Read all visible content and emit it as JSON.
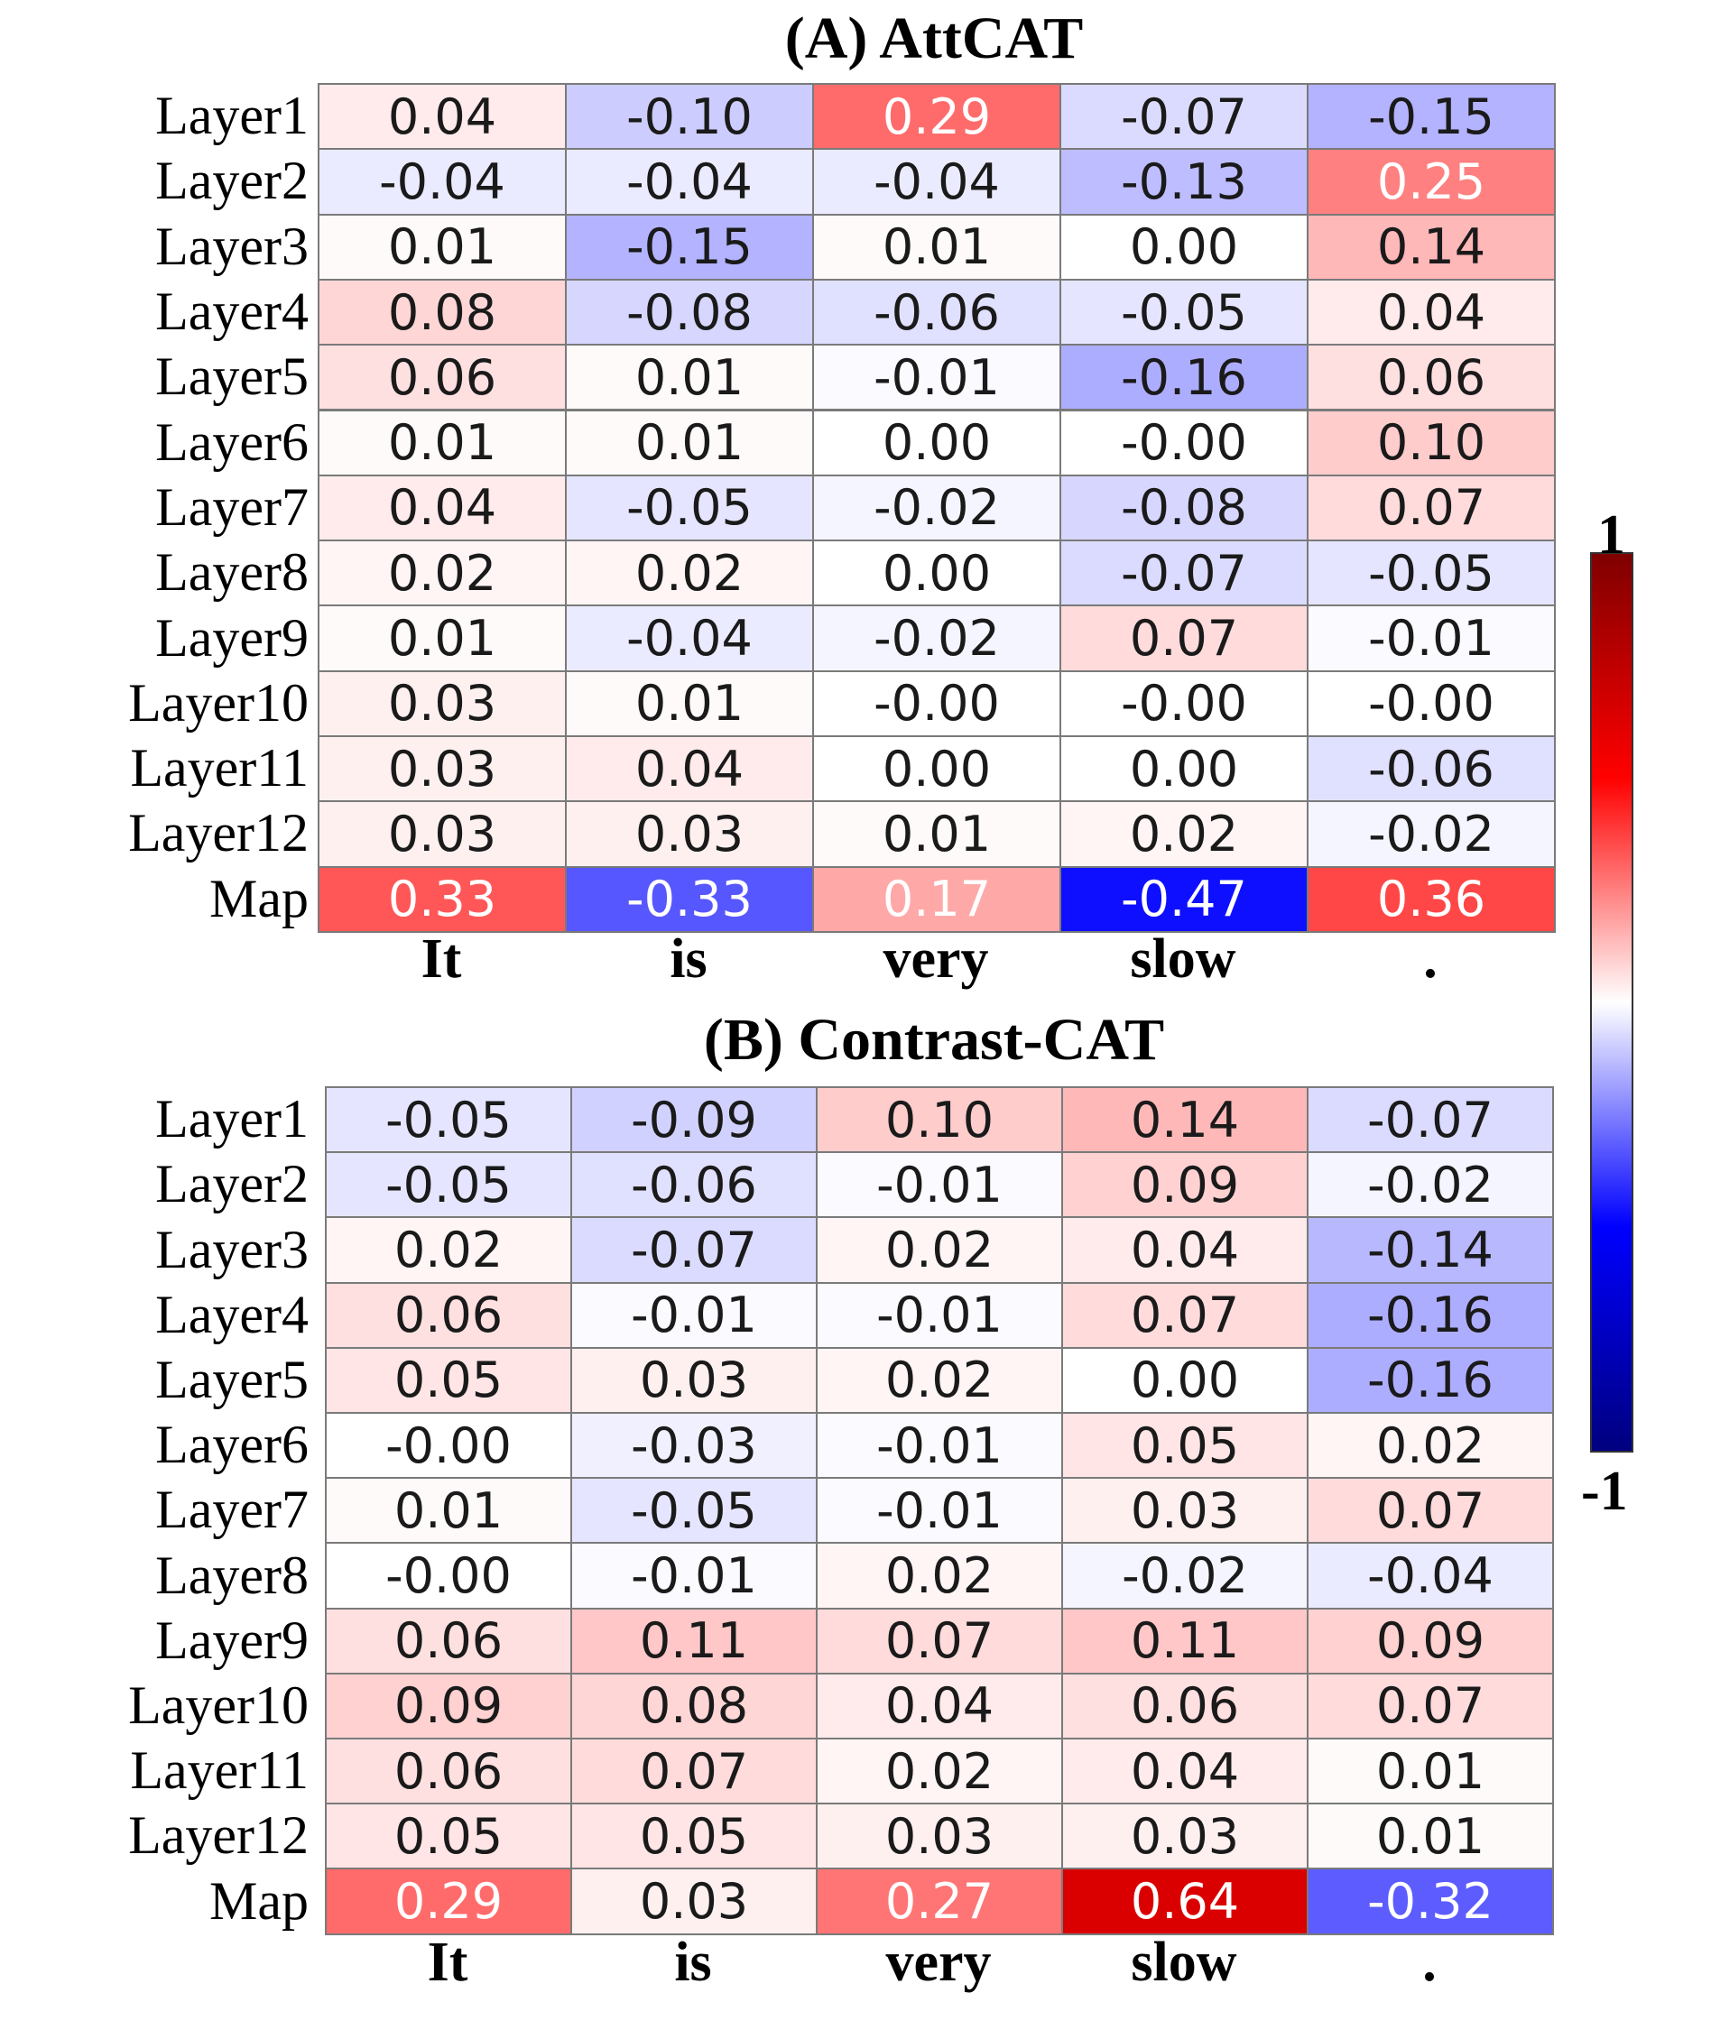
{
  "chart_data": [
    {
      "type": "heatmap",
      "title": "(A) AttCAT",
      "rows": [
        "Layer1",
        "Layer2",
        "Layer3",
        "Layer4",
        "Layer5",
        "Layer6",
        "Layer7",
        "Layer8",
        "Layer9",
        "Layer10",
        "Layer11",
        "Layer12",
        "Map"
      ],
      "columns": [
        "It",
        "is",
        "very",
        "slow",
        "."
      ],
      "values": [
        [
          0.04,
          -0.1,
          0.29,
          -0.07,
          -0.15
        ],
        [
          -0.04,
          -0.04,
          -0.04,
          -0.13,
          0.25
        ],
        [
          0.01,
          -0.15,
          0.01,
          0.0,
          0.14
        ],
        [
          0.08,
          -0.08,
          -0.06,
          -0.05,
          0.04
        ],
        [
          0.06,
          0.01,
          -0.01,
          -0.16,
          0.06
        ],
        [
          0.01,
          0.01,
          0.0,
          -0.0,
          0.1
        ],
        [
          0.04,
          -0.05,
          -0.02,
          -0.08,
          0.07
        ],
        [
          0.02,
          0.02,
          0.0,
          -0.07,
          -0.05
        ],
        [
          0.01,
          -0.04,
          -0.02,
          0.07,
          -0.01
        ],
        [
          0.03,
          0.01,
          -0.0,
          -0.0,
          -0.0
        ],
        [
          0.03,
          0.04,
          0.0,
          0.0,
          -0.06
        ],
        [
          0.03,
          0.03,
          0.01,
          0.02,
          -0.02
        ],
        [
          0.33,
          -0.33,
          0.17,
          -0.47,
          0.36
        ]
      ],
      "labels": [
        [
          "0.04",
          "-0.10",
          "0.29",
          "-0.07",
          "-0.15"
        ],
        [
          "-0.04",
          "-0.04",
          "-0.04",
          "-0.13",
          "0.25"
        ],
        [
          "0.01",
          "-0.15",
          "0.01",
          "0.00",
          "0.14"
        ],
        [
          "0.08",
          "-0.08",
          "-0.06",
          "-0.05",
          "0.04"
        ],
        [
          "0.06",
          "0.01",
          "-0.01",
          "-0.16",
          "0.06"
        ],
        [
          "0.01",
          "0.01",
          "0.00",
          "-0.00",
          "0.10"
        ],
        [
          "0.04",
          "-0.05",
          "-0.02",
          "-0.08",
          "0.07"
        ],
        [
          "0.02",
          "0.02",
          "0.00",
          "-0.07",
          "-0.05"
        ],
        [
          "0.01",
          "-0.04",
          "-0.02",
          "0.07",
          "-0.01"
        ],
        [
          "0.03",
          "0.01",
          "-0.00",
          "-0.00",
          "-0.00"
        ],
        [
          "0.03",
          "0.04",
          "0.00",
          "0.00",
          "-0.06"
        ],
        [
          "0.03",
          "0.03",
          "0.01",
          "0.02",
          "-0.02"
        ],
        [
          "0.33",
          "-0.33",
          "0.17",
          "-0.47",
          "0.36"
        ]
      ]
    },
    {
      "type": "heatmap",
      "title": "(B) Contrast-CAT",
      "rows": [
        "Layer1",
        "Layer2",
        "Layer3",
        "Layer4",
        "Layer5",
        "Layer6",
        "Layer7",
        "Layer8",
        "Layer9",
        "Layer10",
        "Layer11",
        "Layer12",
        "Map"
      ],
      "columns": [
        "It",
        "is",
        "very",
        "slow",
        "."
      ],
      "values": [
        [
          -0.05,
          -0.09,
          0.1,
          0.14,
          -0.07
        ],
        [
          -0.05,
          -0.06,
          -0.01,
          0.09,
          -0.02
        ],
        [
          0.02,
          -0.07,
          0.02,
          0.04,
          -0.14
        ],
        [
          0.06,
          -0.01,
          -0.01,
          0.07,
          -0.16
        ],
        [
          0.05,
          0.03,
          0.02,
          0.0,
          -0.16
        ],
        [
          -0.0,
          -0.03,
          -0.01,
          0.05,
          0.02
        ],
        [
          0.01,
          -0.05,
          -0.01,
          0.03,
          0.07
        ],
        [
          -0.0,
          -0.01,
          0.02,
          -0.02,
          -0.04
        ],
        [
          0.06,
          0.11,
          0.07,
          0.11,
          0.09
        ],
        [
          0.09,
          0.08,
          0.04,
          0.06,
          0.07
        ],
        [
          0.06,
          0.07,
          0.02,
          0.04,
          0.01
        ],
        [
          0.05,
          0.05,
          0.03,
          0.03,
          0.01
        ],
        [
          0.29,
          0.03,
          0.27,
          0.64,
          -0.32
        ]
      ],
      "labels": [
        [
          "-0.05",
          "-0.09",
          "0.10",
          "0.14",
          "-0.07"
        ],
        [
          "-0.05",
          "-0.06",
          "-0.01",
          "0.09",
          "-0.02"
        ],
        [
          "0.02",
          "-0.07",
          "0.02",
          "0.04",
          "-0.14"
        ],
        [
          "0.06",
          "-0.01",
          "-0.01",
          "0.07",
          "-0.16"
        ],
        [
          "0.05",
          "0.03",
          "0.02",
          "0.00",
          "-0.16"
        ],
        [
          "-0.00",
          "-0.03",
          "-0.01",
          "0.05",
          "0.02"
        ],
        [
          "0.01",
          "-0.05",
          "-0.01",
          "0.03",
          "0.07"
        ],
        [
          "-0.00",
          "-0.01",
          "0.02",
          "-0.02",
          "-0.04"
        ],
        [
          "0.06",
          "0.11",
          "0.07",
          "0.11",
          "0.09"
        ],
        [
          "0.09",
          "0.08",
          "0.04",
          "0.06",
          "0.07"
        ],
        [
          "0.06",
          "0.07",
          "0.02",
          "0.04",
          "0.01"
        ],
        [
          "0.05",
          "0.05",
          "0.03",
          "0.03",
          "0.01"
        ],
        [
          "0.29",
          "0.03",
          "0.27",
          "0.64",
          "-0.32"
        ]
      ]
    }
  ],
  "colorbar": {
    "max_label": "1",
    "min_label": "-1",
    "range": [
      -1,
      1
    ],
    "colormap": "seismic"
  }
}
